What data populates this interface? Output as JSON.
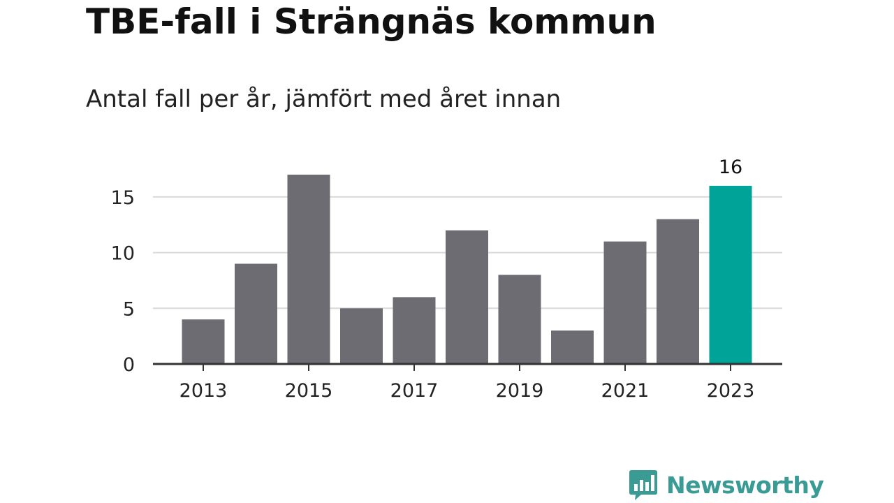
{
  "header": {
    "title": "TBE-fall i Strängnäs kommun",
    "subtitle": "Antal fall per år, jämfört med året innan"
  },
  "brand": {
    "name": "Newsworthy",
    "icon": "bar-chart-speech-bubble-icon",
    "color": "#3a9b95"
  },
  "colors": {
    "bar": "#6d6c72",
    "highlight": "#00a398",
    "grid": "#d9d9d9",
    "axis": "#333333"
  },
  "chart_data": {
    "type": "bar",
    "categories": [
      "2013",
      "2014",
      "2015",
      "2016",
      "2017",
      "2018",
      "2019",
      "2020",
      "2021",
      "2022",
      "2023"
    ],
    "values": [
      4,
      9,
      17,
      5,
      6,
      12,
      8,
      3,
      11,
      13,
      16
    ],
    "highlight_index": 10,
    "highlight_label": "16",
    "x_tick_labels": [
      "2013",
      "2015",
      "2017",
      "2019",
      "2021",
      "2023"
    ],
    "y_ticks": [
      0,
      5,
      10,
      15
    ],
    "ylim": [
      0,
      17
    ],
    "grid": true,
    "legend": "none"
  }
}
